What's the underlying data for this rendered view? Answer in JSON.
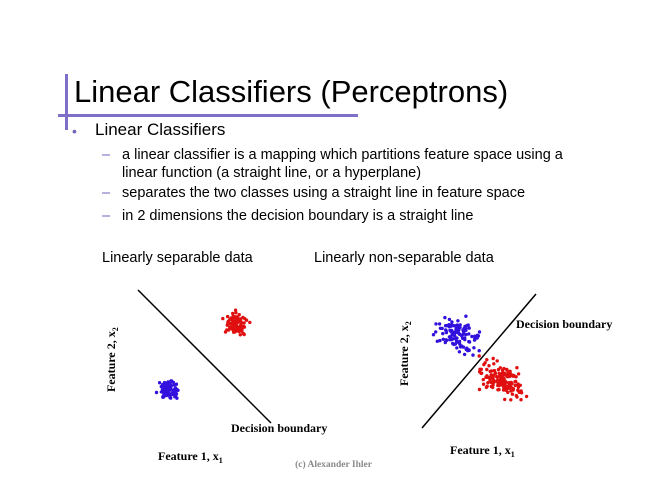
{
  "slide": {
    "title": "Linear Classifiers (Perceptrons)",
    "bullet": "Linear Classifiers",
    "subbullets": [
      "a linear classifier is a mapping which partitions feature space using a",
      "linear function (a straight line, or a hyperplane)",
      "separates the two classes using a straight line in feature space",
      "in 2 dimensions the decision boundary is a straight line"
    ],
    "dash": "–",
    "bullet_symbol": "•",
    "copyright": "(c) Alexander Ihler",
    "colors": {
      "accent": "#7f6fc7",
      "class_blue": "#3311dd",
      "class_red": "#e01010"
    }
  },
  "plots": {
    "left": {
      "caption": "Linearly separable data",
      "xlabel_prefix": "Feature 1,  x",
      "xlabel_sub": "1",
      "ylabel_prefix": "Feature 2,  x",
      "ylabel_sub": "2",
      "boundary_label": "Decision boundary"
    },
    "right": {
      "caption": "Linearly non-separable data",
      "xlabel_prefix": "Feature 1,  x",
      "xlabel_sub": "1",
      "ylabel_prefix": "Feature 2,  x",
      "ylabel_sub": "2",
      "boundary_label": "Decision boundary"
    }
  }
}
